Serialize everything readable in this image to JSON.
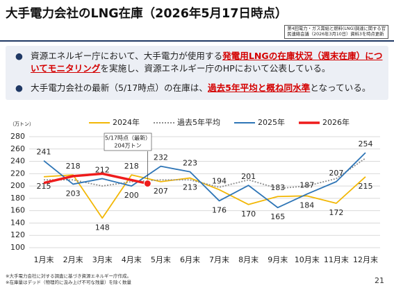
{
  "header": {
    "title": "大手電力会社のLNG在庫（2026年5月17日時点）",
    "source_lines": [
      "第4回電力・ガス需給と燃料(LNG)調達に関する官",
      "民連絡会議（2026年3月10日）資料3を時点更新"
    ]
  },
  "bullets": [
    [
      "資源エネルギー庁において、大手電力が使用する",
      "発電用LNGの在庫状況（週末在庫）についてモニタリング",
      "を実施し、資源エネルギー庁のHPにおいて公表している。"
    ],
    [
      "大手電力会社の最新（5/17時点）の在庫は、",
      "過去5年平均と概ね同水準",
      "となっている。"
    ]
  ],
  "chart_data": {
    "type": "line",
    "y_unit": "（万トン）",
    "categories": [
      "1月末",
      "2月末",
      "3月末",
      "4月末",
      "5月末",
      "6月末",
      "7月末",
      "8月末",
      "9月末",
      "10月末",
      "11月末",
      "12月末"
    ],
    "series": [
      {
        "name": "2024年",
        "color": "#f2b705",
        "dash": false,
        "labels": true,
        "values": [
          215,
          218,
          148,
          218,
          207,
          213,
          194,
          170,
          183,
          184,
          172,
          215
        ]
      },
      {
        "name": "過去5年平均",
        "color": "#8c8c8c",
        "dash": true,
        "labels": false,
        "values": [
          210,
          210,
          200,
          207,
          210,
          210,
          198,
          210,
          196,
          200,
          212,
          245
        ]
      },
      {
        "name": "2025年",
        "color": "#2e75b6",
        "dash": false,
        "labels": true,
        "values": [
          241,
          203,
          212,
          200,
          232,
          223,
          176,
          201,
          165,
          187,
          207,
          254
        ]
      },
      {
        "name": "2026年",
        "color": "#ee1c1c",
        "dash": false,
        "labels": false,
        "values": [
          205,
          216,
          220,
          null,
          null,
          null,
          null,
          null,
          null,
          null,
          null,
          null
        ]
      }
    ],
    "latest_point": {
      "label": "5/17時点（最新）",
      "value_label": "204万トン",
      "value": 204
    },
    "ylim": [
      100,
      280
    ],
    "yticks": [
      100,
      120,
      140,
      160,
      180,
      200,
      220,
      240,
      260,
      280
    ],
    "grid": true
  },
  "footnotes": [
    "※大手電力会社に対する調査に基づき資源エネルギー庁作成。",
    "※在庫量はデッド（物理的に汲み上げ不可な残量）を除く数量"
  ],
  "page_number": "21"
}
